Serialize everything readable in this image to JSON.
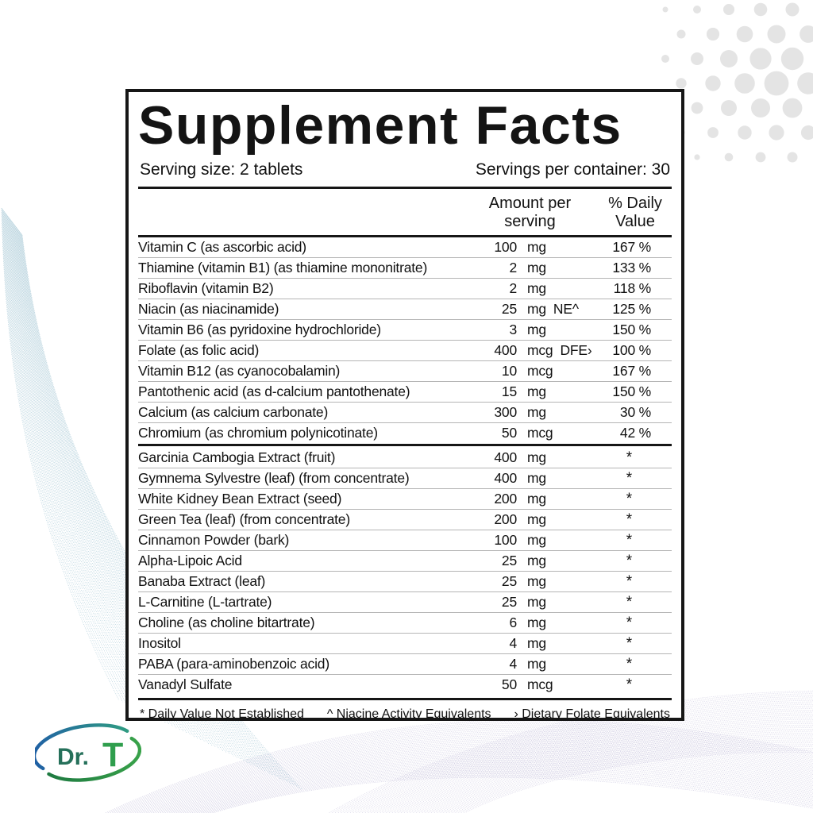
{
  "label": {
    "title": "Supplement Facts",
    "serving_size": "Serving size: 2 tablets",
    "servings_per_container": "Servings per container: 30",
    "columns": {
      "amount": "Amount per serving",
      "daily_value": "% Daily Value"
    },
    "sections": [
      {
        "rows": [
          {
            "name": "Vitamin C (as ascorbic acid)",
            "amount": "100",
            "unit": "mg",
            "note": "",
            "dv": "167 %"
          },
          {
            "name": "Thiamine (vitamin B1) (as thiamine mononitrate)",
            "amount": "2",
            "unit": "mg",
            "note": "",
            "dv": "133 %"
          },
          {
            "name": "Riboflavin (vitamin B2)",
            "amount": "2",
            "unit": "mg",
            "note": "",
            "dv": "118 %"
          },
          {
            "name": "Niacin (as niacinamide)",
            "amount": "25",
            "unit": "mg",
            "note": "NE^",
            "dv": "125 %"
          },
          {
            "name": "Vitamin B6 (as pyridoxine hydrochloride)",
            "amount": "3",
            "unit": "mg",
            "note": "",
            "dv": "150 %"
          },
          {
            "name": "Folate (as folic acid)",
            "amount": "400",
            "unit": "mcg",
            "note": "DFE›",
            "dv": "100 %"
          },
          {
            "name": "Vitamin B12 (as cyanocobalamin)",
            "amount": "10",
            "unit": "mcg",
            "note": "",
            "dv": "167 %"
          },
          {
            "name": "Pantothenic acid (as d-calcium pantothenate)",
            "amount": "15",
            "unit": "mg",
            "note": "",
            "dv": "150 %"
          },
          {
            "name": "Calcium (as calcium carbonate)",
            "amount": "300",
            "unit": "mg",
            "note": "",
            "dv": "30 %"
          },
          {
            "name": "Chromium (as chromium polynicotinate)",
            "amount": "50",
            "unit": "mcg",
            "note": "",
            "dv": "42 %"
          }
        ]
      },
      {
        "rows": [
          {
            "name": "Garcinia Cambogia Extract (fruit)",
            "amount": "400",
            "unit": "mg",
            "note": "",
            "dv": "*"
          },
          {
            "name": "Gymnema Sylvestre (leaf) (from concentrate)",
            "amount": "400",
            "unit": "mg",
            "note": "",
            "dv": "*"
          },
          {
            "name": "White Kidney Bean Extract (seed)",
            "amount": "200",
            "unit": "mg",
            "note": "",
            "dv": "*"
          },
          {
            "name": "Green Tea (leaf) (from concentrate)",
            "amount": "200",
            "unit": "mg",
            "note": "",
            "dv": "*"
          },
          {
            "name": "Cinnamon Powder (bark)",
            "amount": "100",
            "unit": "mg",
            "note": "",
            "dv": "*"
          },
          {
            "name": "Alpha-Lipoic Acid",
            "amount": "25",
            "unit": "mg",
            "note": "",
            "dv": "*"
          },
          {
            "name": "Banaba Extract (leaf)",
            "amount": "25",
            "unit": "mg",
            "note": "",
            "dv": "*"
          },
          {
            "name": "L-Carnitine (L-tartrate)",
            "amount": "25",
            "unit": "mg",
            "note": "",
            "dv": "*"
          },
          {
            "name": "Choline (as choline bitartrate)",
            "amount": "6",
            "unit": "mg",
            "note": "",
            "dv": "*"
          },
          {
            "name": "Inositol",
            "amount": "4",
            "unit": "mg",
            "note": "",
            "dv": "*"
          },
          {
            "name": "PABA (para-aminobenzoic acid)",
            "amount": "4",
            "unit": "mg",
            "note": "",
            "dv": "*"
          },
          {
            "name": "Vanadyl Sulfate",
            "amount": "50",
            "unit": "mcg",
            "note": "",
            "dv": "*"
          }
        ]
      }
    ],
    "footnotes": {
      "daily_value": "* Daily Value Not Established",
      "niacin": "^ Niacine Activity Equivalents",
      "folate": "› Dietary Folate Equivalents"
    }
  },
  "logo": {
    "dr": "Dr.",
    "t": "T",
    "color_dr": "#25705a",
    "color_t": "#2f9e4d",
    "swoosh_blue": "#2060a5",
    "swoosh_teal": "#2f9b82",
    "swoosh_green": "#39a24a",
    "swoosh_dark_green": "#1e7a41"
  },
  "decor": {
    "teal_wave": "#4f93ad",
    "purple_wave": "#8b84b8",
    "dot_gray": "#e4e4e4"
  }
}
